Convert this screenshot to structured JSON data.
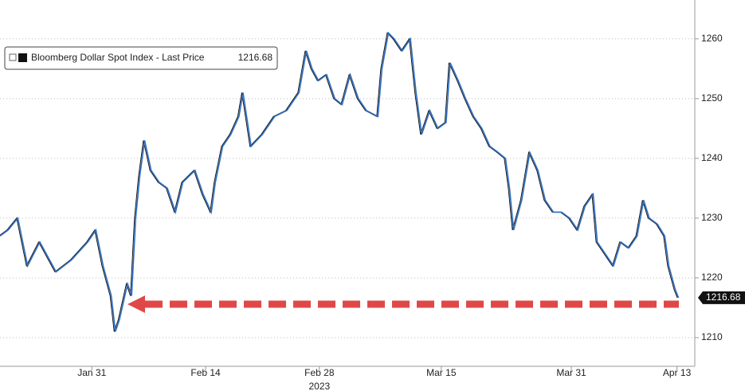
{
  "chart_data": {
    "type": "line",
    "xlabel": "2023",
    "x": [
      19.7,
      20.7,
      21.9,
      23.1,
      24.6,
      26.6,
      28.5,
      30.5,
      31.5,
      32.4,
      33.4,
      33.9,
      34.4,
      35.4,
      35.9,
      36.4,
      36.9,
      37.5,
      38.3,
      39.3,
      40.3,
      41.3,
      42.2,
      43.7,
      44.7,
      45.7,
      46.2,
      47.1,
      48.1,
      49.1,
      49.6,
      50.6,
      52.0,
      53.5,
      55.0,
      56.5,
      57.4,
      58.1,
      58.9,
      59.9,
      60.9,
      61.8,
      62.8,
      63.8,
      64.8,
      66.2,
      66.7,
      67.5,
      68.2,
      69.2,
      70.2,
      70.9,
      71.6,
      72.6,
      73.6,
      74.6,
      75.1,
      76.1,
      77.0,
      78.0,
      79.0,
      80.0,
      81.0,
      81.9,
      82.4,
      82.9,
      83.9,
      84.9,
      85.9,
      86.8,
      87.8,
      88.8,
      89.8,
      90.8,
      91.7,
      92.7,
      93.2,
      94.2,
      95.2,
      96.1,
      97.1,
      98.1,
      98.9,
      99.6,
      100.6,
      101.5,
      102.0,
      102.8,
      103.2
    ],
    "series": [
      {
        "name": "Bloomberg Dollar Spot Index - Last Price",
        "color": "#2f6fc4",
        "values": [
          1227,
          1228,
          1230,
          1222,
          1226,
          1221,
          1223,
          1226,
          1228,
          1222,
          1217,
          1211,
          1213,
          1219,
          1217,
          1230,
          1237,
          1243,
          1238,
          1236,
          1235,
          1231,
          1236,
          1238,
          1234,
          1231,
          1236,
          1242,
          1244,
          1247,
          1251,
          1242,
          1244,
          1247,
          1248,
          1251,
          1258,
          1255,
          1253,
          1254,
          1250,
          1249,
          1254,
          1250,
          1248,
          1247,
          1255,
          1261,
          1260,
          1258,
          1260,
          1251,
          1244,
          1248,
          1245,
          1246,
          1256,
          1253,
          1250,
          1247,
          1245,
          1242,
          1241,
          1240,
          1235,
          1228,
          1233,
          1241,
          1238,
          1233,
          1231,
          1231,
          1230,
          1228,
          1232,
          1234,
          1226,
          1224,
          1222,
          1226,
          1225,
          1227,
          1233,
          1230,
          1229,
          1227,
          1222,
          1218,
          1216.68
        ]
      }
    ],
    "xlim": [
      19.7,
      105
    ],
    "xticks": [
      {
        "value": 31,
        "label": "Jan 31"
      },
      {
        "value": 45,
        "label": "Feb 14"
      },
      {
        "value": 59,
        "label": "Feb 28"
      },
      {
        "value": 74,
        "label": "Mar 15"
      },
      {
        "value": 90,
        "label": "Mar 31"
      },
      {
        "value": 103,
        "label": "Apr 13"
      }
    ],
    "ylim": [
      1205.2,
      1266.5
    ],
    "yticks": [
      1210,
      1220,
      1230,
      1240,
      1250,
      1260
    ],
    "grid": true
  }
}
